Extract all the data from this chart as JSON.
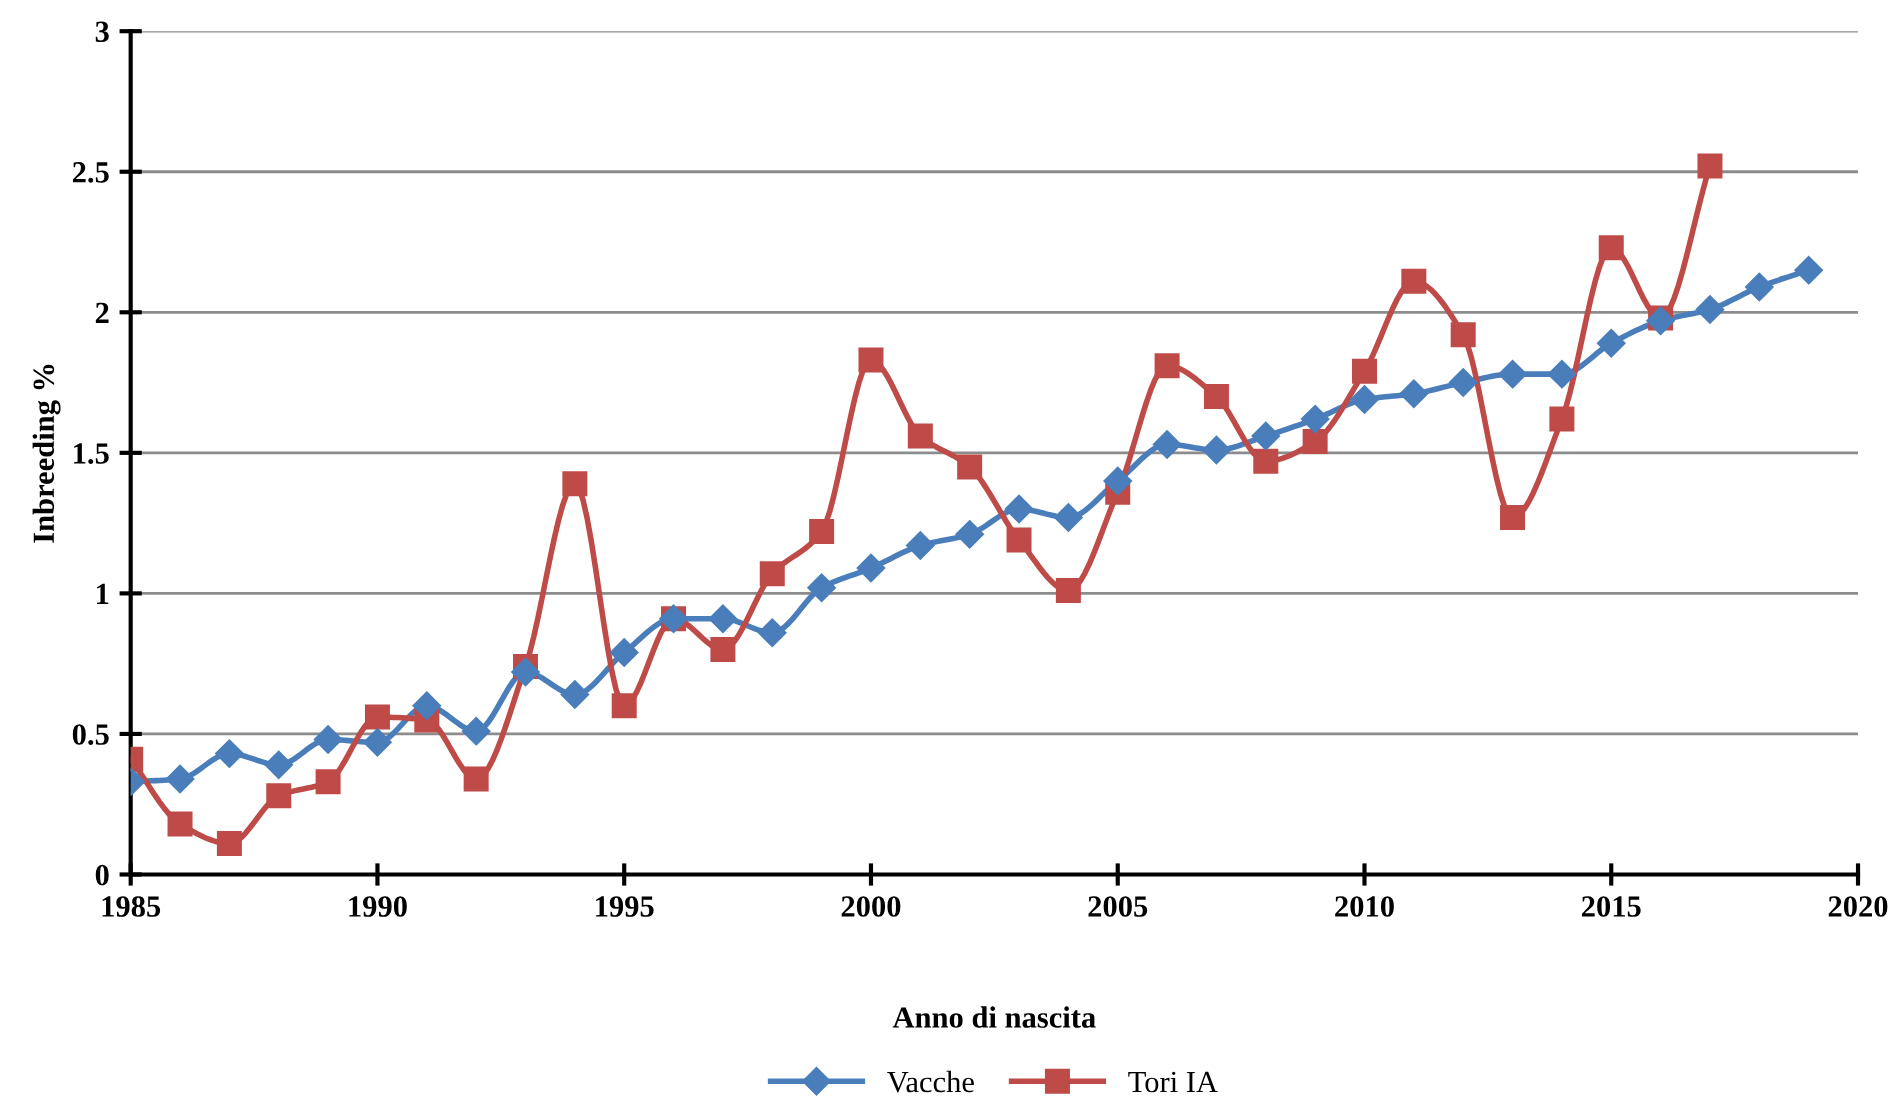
{
  "chart_data": {
    "type": "line",
    "xlabel": "Anno di nascita",
    "ylabel": "Inbreeding %",
    "xlim": [
      1985,
      2020
    ],
    "xticks": [
      1985,
      1990,
      1995,
      2000,
      2005,
      2010,
      2015,
      2020
    ],
    "ylim": [
      0,
      3
    ],
    "yticks": [
      0,
      0.5,
      1,
      1.5,
      2,
      2.5,
      3
    ],
    "grid": "y",
    "legend": "bottom",
    "series": [
      {
        "name": "Vacche",
        "color": "#4a7ebb",
        "marker": "diamond",
        "x": [
          1985,
          1986,
          1987,
          1988,
          1989,
          1990,
          1991,
          1992,
          1993,
          1994,
          1995,
          1996,
          1997,
          1998,
          1999,
          2000,
          2001,
          2002,
          2003,
          2004,
          2005,
          2006,
          2007,
          2008,
          2009,
          2010,
          2011,
          2012,
          2013,
          2014,
          2015,
          2016,
          2017,
          2018,
          2019
        ],
        "values": [
          0.33,
          0.34,
          0.43,
          0.39,
          0.48,
          0.47,
          0.6,
          0.51,
          0.72,
          0.64,
          0.79,
          0.91,
          0.91,
          0.86,
          1.02,
          1.09,
          1.17,
          1.21,
          1.3,
          1.27,
          1.4,
          1.53,
          1.51,
          1.56,
          1.62,
          1.69,
          1.71,
          1.75,
          1.78,
          1.78,
          1.89,
          1.97,
          2.01,
          2.09,
          2.15
        ]
      },
      {
        "name": "Tori IA",
        "color": "#be4b48",
        "marker": "square",
        "x": [
          1985,
          1986,
          1987,
          1988,
          1989,
          1990,
          1991,
          1992,
          1993,
          1994,
          1995,
          1996,
          1997,
          1998,
          1999,
          2000,
          2001,
          2002,
          2003,
          2004,
          2005,
          2006,
          2007,
          2008,
          2009,
          2010,
          2011,
          2012,
          2013,
          2014,
          2015,
          2016,
          2017
        ],
        "values": [
          0.41,
          0.18,
          0.11,
          0.28,
          0.33,
          0.56,
          0.55,
          0.34,
          0.74,
          1.39,
          0.6,
          0.91,
          0.8,
          1.07,
          1.22,
          1.83,
          1.56,
          1.45,
          1.19,
          1.01,
          1.36,
          1.81,
          1.7,
          1.47,
          1.54,
          1.79,
          2.11,
          1.92,
          1.27,
          1.62,
          2.23,
          1.98,
          2.52
        ]
      }
    ]
  }
}
